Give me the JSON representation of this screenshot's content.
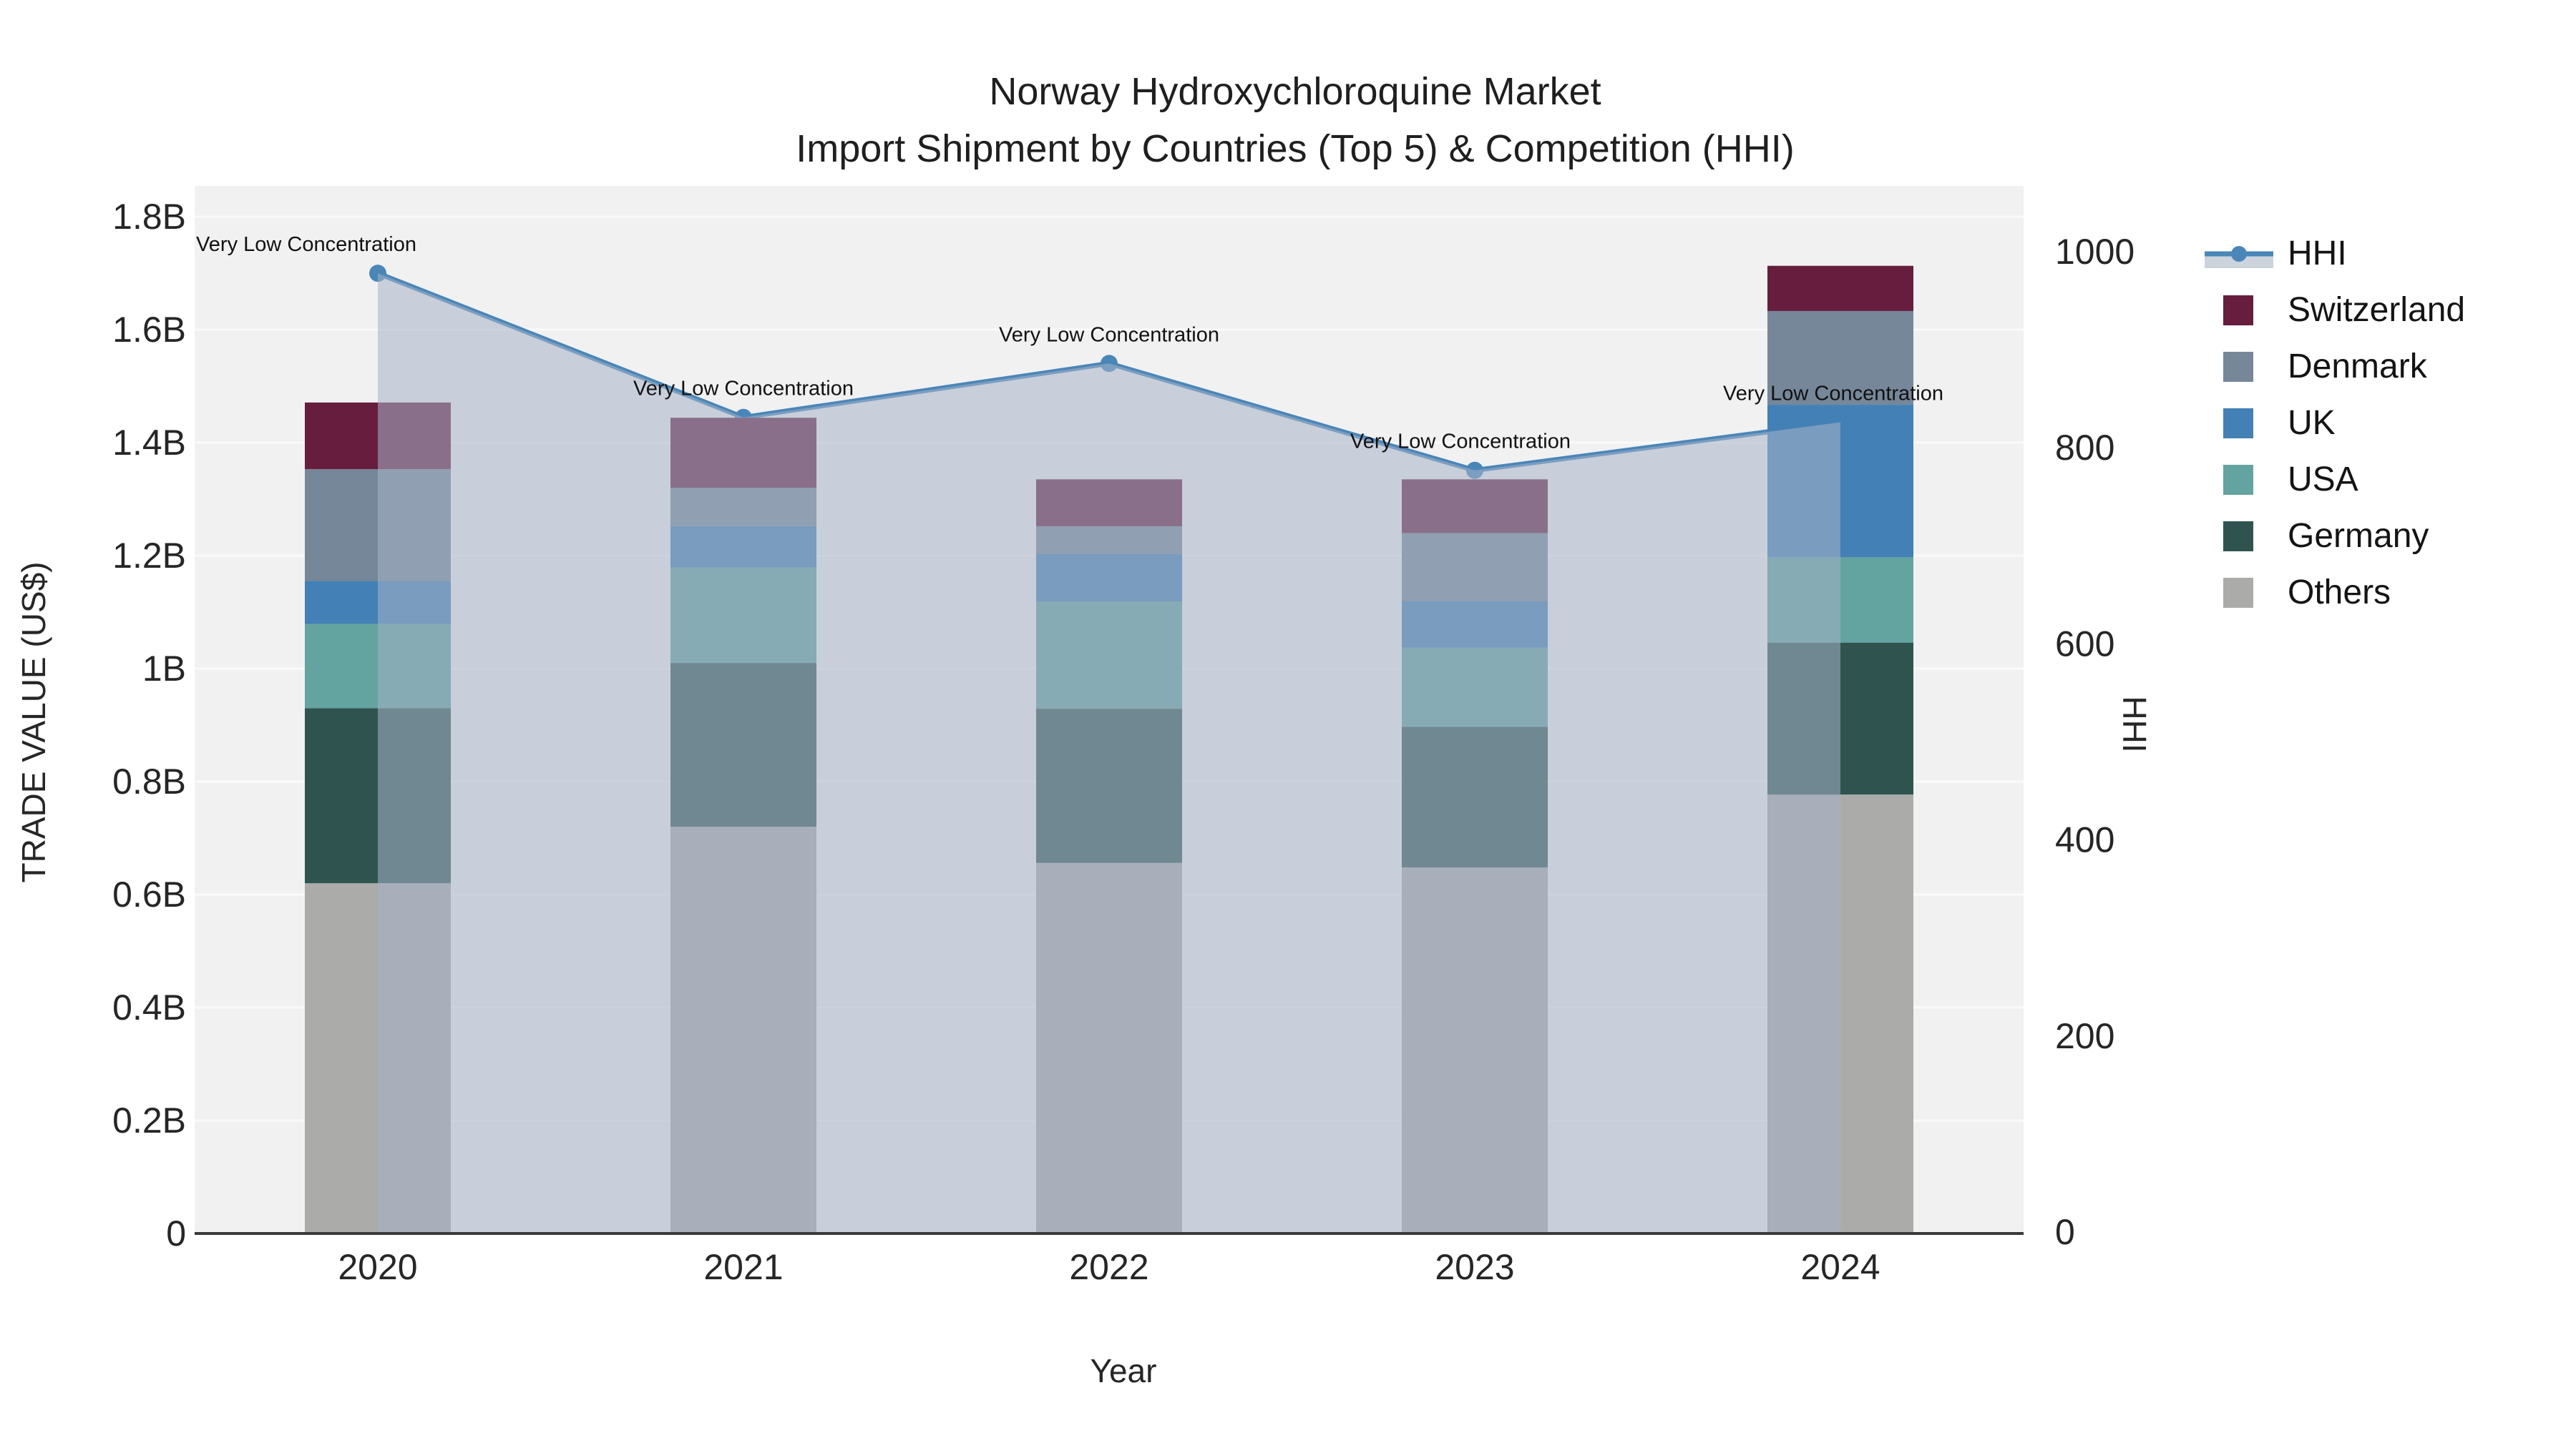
{
  "title": {
    "line1": "Norway Hydroxychloroquine Market",
    "line2": "Import Shipment by Countries (Top 5) & Competition (HHI)"
  },
  "axes": {
    "x_title": "Year",
    "y_left_title": "TRADE VALUE (US$)",
    "y_right_title": "HHI",
    "x_ticks": [
      "2020",
      "2021",
      "2022",
      "2023",
      "2024"
    ],
    "y_left_ticks": [
      "0",
      "0.2B",
      "0.4B",
      "0.6B",
      "0.8B",
      "1B",
      "1.2B",
      "1.4B",
      "1.6B",
      "1.8B"
    ],
    "y_right_ticks": [
      "0",
      "200",
      "400",
      "600",
      "800",
      "1000"
    ]
  },
  "legend": {
    "items": [
      {
        "label": "HHI",
        "kind": "line",
        "color": "#4a86b8",
        "band": "#ccd3dd"
      },
      {
        "label": "Switzerland",
        "kind": "swatch",
        "color": "#671d3e"
      },
      {
        "label": "Denmark",
        "kind": "swatch",
        "color": "#76879a"
      },
      {
        "label": "UK",
        "kind": "swatch",
        "color": "#4380b5"
      },
      {
        "label": "USA",
        "kind": "swatch",
        "color": "#63a3a0"
      },
      {
        "label": "Germany",
        "kind": "swatch",
        "color": "#2f5450"
      },
      {
        "label": "Others",
        "kind": "swatch",
        "color": "#abacaa"
      }
    ]
  },
  "chart_data": {
    "type": "bar+line",
    "title": "Norway Hydroxychloroquine Market — Import Shipment by Countries (Top 5) & Competition (HHI)",
    "xlabel": "Year",
    "ylabel_left": "TRADE VALUE (US$)",
    "ylabel_right": "HHI",
    "categories": [
      "2020",
      "2021",
      "2022",
      "2023",
      "2024"
    ],
    "values_unit": "billion US$",
    "stacking": "bottom-to-top",
    "series": [
      {
        "name": "Others",
        "color": "#abacaa",
        "values": [
          0.62,
          0.72,
          0.656,
          0.648,
          0.777
        ]
      },
      {
        "name": "Germany",
        "color": "#2f5450",
        "values": [
          0.31,
          0.29,
          0.273,
          0.249,
          0.269
        ]
      },
      {
        "name": "USA",
        "color": "#63a3a0",
        "values": [
          0.149,
          0.169,
          0.19,
          0.14,
          0.151
        ]
      },
      {
        "name": "UK",
        "color": "#4380b5",
        "values": [
          0.076,
          0.073,
          0.084,
          0.082,
          0.27
        ]
      },
      {
        "name": "Denmark",
        "color": "#76879a",
        "values": [
          0.198,
          0.068,
          0.049,
          0.121,
          0.166
        ]
      },
      {
        "name": "Switzerland",
        "color": "#671d3e",
        "values": [
          0.118,
          0.124,
          0.083,
          0.095,
          0.08
        ]
      }
    ],
    "bar_totals": [
      1.471,
      1.444,
      1.335,
      1.335,
      1.713
    ],
    "line_series": {
      "name": "HHI",
      "axis": "right",
      "values": [
        978,
        831,
        886,
        777,
        826
      ],
      "color": "#4a86b8",
      "area_fill": "rgba(166,179,198,0.55)",
      "markers": true
    },
    "annotations": [
      {
        "text": "Very Low Concentration",
        "category": "2020"
      },
      {
        "text": "Very Low Concentration",
        "category": "2021"
      },
      {
        "text": "Very Low Concentration",
        "category": "2022"
      },
      {
        "text": "Very Low Concentration",
        "category": "2023"
      },
      {
        "text": "Very Low Concentration",
        "category": "2024"
      }
    ],
    "ylim_left_billions": [
      0,
      1.8
    ],
    "ylim_right": [
      0,
      1000
    ],
    "grid": true,
    "legend_position": "right",
    "plot_bg": "#f1f1f2",
    "grid_color": "#fafafa",
    "axisline_color": "#3a3a3a",
    "tick_color": "#262626",
    "annotation_color": "#111111"
  }
}
